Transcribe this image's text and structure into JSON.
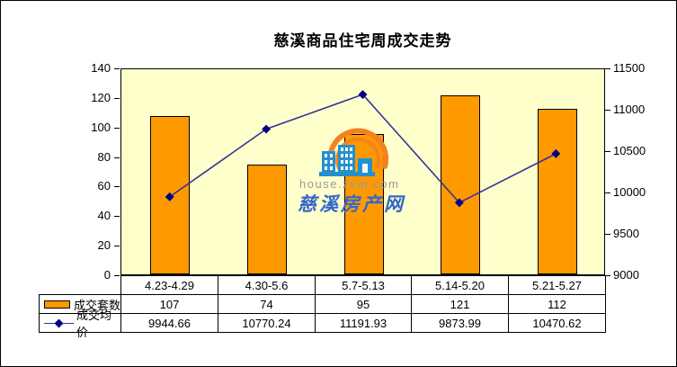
{
  "title": {
    "text": "慈溪商品住宅周成交走势"
  },
  "watermark": {
    "url": "house.zxip.com",
    "name": "慈溪房产网",
    "building_color": "#2491CE",
    "arc_color": "#F58220",
    "url_color": "#999999",
    "name_color": "#3366CC"
  },
  "chart_data": {
    "type": "combo: bar + line",
    "title": "慈溪商品住宅周成交走势",
    "categories": [
      "4.23-4.29",
      "4.30-5.6",
      "5.7-5.13",
      "5.14-5.20",
      "5.21-5.27"
    ],
    "series": [
      {
        "name": "成交套数",
        "chart": "bar",
        "axis": "left",
        "color": "#FF9900",
        "values": [
          107,
          74,
          95,
          121,
          112
        ]
      },
      {
        "name": "成交均价",
        "chart": "line",
        "axis": "right",
        "color": "#333399",
        "marker_color": "#000080",
        "values": [
          9944.66,
          10770.24,
          11191.93,
          9873.99,
          10470.62
        ]
      }
    ],
    "left_axis": {
      "min": 0,
      "max": 140,
      "step": 20,
      "ticks": [
        140,
        120,
        100,
        80,
        60,
        40,
        20,
        0
      ]
    },
    "right_axis": {
      "min": 9000,
      "max": 11500,
      "step": 500,
      "ticks": [
        11500,
        11000,
        10500,
        10000,
        9500,
        9000
      ]
    },
    "plot_background": "#FFFFCC",
    "grid": false,
    "legend_position": "bottom table, left column",
    "data_table_below_axis": true
  }
}
